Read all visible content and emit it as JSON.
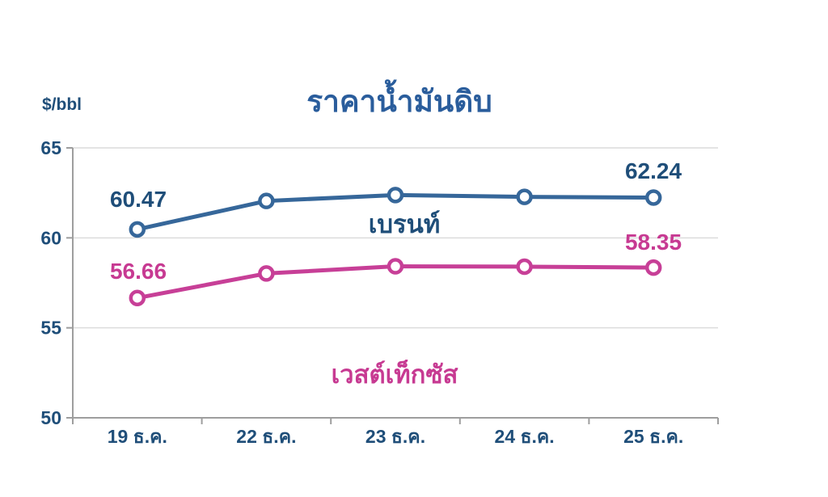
{
  "chart_data": {
    "type": "line",
    "title": "ราคาน้ำมันดิบ",
    "ylabel": "$/bbl",
    "xlabel": "",
    "categories": [
      "19 ธ.ค.",
      "22 ธ.ค.",
      "23 ธ.ค.",
      "24 ธ.ค.",
      "25 ธ.ค."
    ],
    "ylim": [
      50,
      65
    ],
    "yticks": [
      65,
      60,
      55,
      50
    ],
    "grid": true,
    "legend_position": "inline-annotations",
    "series": [
      {
        "name": "เบรนท์",
        "color": "#36679a",
        "label_color": "#1f4e79",
        "values": [
          60.47,
          62.05,
          62.38,
          62.28,
          62.24
        ],
        "first_point_label": "60.47",
        "last_point_label": "62.24"
      },
      {
        "name": "เวสต์เท็กซัส",
        "color": "#c73f97",
        "label_color": "#c73a92",
        "values": [
          56.66,
          58.02,
          58.42,
          58.4,
          58.35
        ],
        "first_point_label": "56.66",
        "last_point_label": "58.35"
      }
    ],
    "style": {
      "axis_color": "#9e9e9e",
      "grid_color": "#dcdcdc",
      "tick_label_color": "#1f4e79",
      "marker_fill": "#ffffff",
      "title_color": "#2a5d9c",
      "background": "#ffffff"
    }
  }
}
